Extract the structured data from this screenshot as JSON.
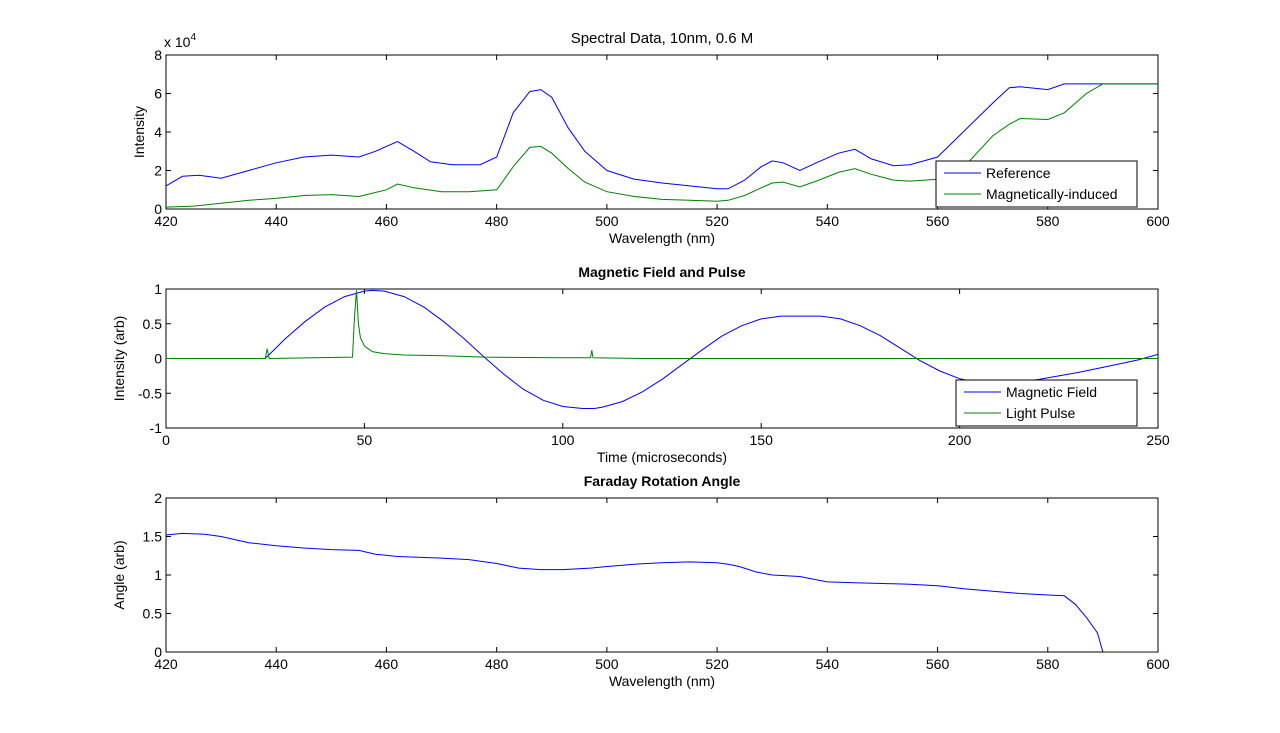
{
  "chart_data": [
    {
      "type": "line",
      "title": "Spectral Data, 10nm, 0.6 M",
      "xlabel": "Wavelength (nm)",
      "ylabel": "Intensity",
      "exponent_label": "x 10",
      "exponent_power": "4",
      "xlim": [
        420,
        600
      ],
      "ylim": [
        0,
        80000
      ],
      "xticks": [
        "420",
        "440",
        "460",
        "480",
        "500",
        "520",
        "540",
        "560",
        "580",
        "600"
      ],
      "yticks": [
        "0",
        "2",
        "4",
        "6",
        "8"
      ],
      "ytick_values": [
        0,
        20000,
        40000,
        60000,
        80000
      ],
      "legend_position": "bottom-right",
      "series": [
        {
          "name": "Reference",
          "color": "#0000ff",
          "x": [
            420,
            423,
            426,
            430,
            435,
            440,
            445,
            450,
            455,
            458,
            462,
            465,
            468,
            472,
            477,
            480,
            483,
            486,
            488,
            490,
            493,
            496,
            500,
            505,
            510,
            515,
            520,
            522,
            525,
            528,
            530,
            532,
            535,
            538,
            542,
            545,
            548,
            552,
            555,
            560,
            565,
            570,
            573,
            575,
            580,
            583,
            590,
            600
          ],
          "y": [
            12000,
            17000,
            17500,
            16000,
            20000,
            24000,
            27000,
            28000,
            27000,
            30000,
            35000,
            30000,
            24500,
            23000,
            23000,
            27000,
            50000,
            61000,
            62000,
            58000,
            42000,
            30000,
            20000,
            15500,
            13500,
            12000,
            10500,
            10500,
            15000,
            22000,
            25000,
            24000,
            20000,
            24000,
            29000,
            31000,
            26000,
            22500,
            23000,
            27000,
            41000,
            55000,
            63000,
            63500,
            62000,
            65000,
            65000,
            65000
          ]
        },
        {
          "name": "Magnetically-induced",
          "color": "#008000",
          "x": [
            420,
            425,
            430,
            435,
            440,
            445,
            450,
            455,
            460,
            462,
            465,
            470,
            475,
            480,
            483,
            486,
            488,
            490,
            493,
            496,
            500,
            505,
            510,
            515,
            520,
            522,
            525,
            528,
            530,
            532,
            535,
            538,
            542,
            545,
            548,
            552,
            555,
            560,
            565,
            570,
            573,
            575,
            580,
            583,
            587,
            590,
            600
          ],
          "y": [
            1000,
            1500,
            3000,
            4500,
            5500,
            7000,
            7500,
            6500,
            10000,
            13000,
            11000,
            9000,
            9000,
            10000,
            22000,
            32000,
            32500,
            29000,
            21000,
            14000,
            9000,
            6500,
            5000,
            4500,
            4000,
            4500,
            7000,
            11000,
            13500,
            14000,
            11500,
            14500,
            19000,
            21000,
            18000,
            15000,
            14500,
            15500,
            22500,
            38000,
            44000,
            47000,
            46500,
            50000,
            60000,
            65000,
            65000
          ]
        }
      ]
    },
    {
      "type": "line",
      "title": "Magnetic Field and Pulse",
      "xlabel": "Time (microseconds)",
      "ylabel": "Intensity (arb)",
      "xlim": [
        0,
        250
      ],
      "ylim": [
        -1,
        1
      ],
      "xticks": [
        "0",
        "50",
        "100",
        "150",
        "200",
        "250"
      ],
      "xtick_values": [
        0,
        50,
        100,
        150,
        200,
        250
      ],
      "yticks": [
        "-1",
        "-0.5",
        "0",
        "0.5",
        "1"
      ],
      "ytick_values": [
        -1,
        -0.5,
        0,
        0.5,
        1
      ],
      "legend_position": "bottom-right",
      "series": [
        {
          "name": "Magnetic Field",
          "color": "#0000ff",
          "x": [
            25,
            30,
            35,
            40,
            45,
            50,
            52,
            55,
            60,
            65,
            70,
            75,
            80,
            85,
            90,
            95,
            100,
            105,
            108,
            110,
            115,
            120,
            125,
            130,
            135,
            140,
            145,
            150,
            155,
            160,
            165,
            170,
            175,
            180,
            185,
            190,
            195,
            200,
            205,
            210,
            215,
            220,
            225,
            230,
            235,
            240,
            245,
            250
          ],
          "y": [
            0,
            0.28,
            0.53,
            0.74,
            0.89,
            0.97,
            0.98,
            0.97,
            0.89,
            0.74,
            0.53,
            0.29,
            0.03,
            -0.22,
            -0.44,
            -0.6,
            -0.69,
            -0.72,
            -0.72,
            -0.7,
            -0.62,
            -0.48,
            -0.3,
            -0.09,
            0.12,
            0.32,
            0.47,
            0.57,
            0.61,
            0.61,
            0.61,
            0.57,
            0.47,
            0.33,
            0.15,
            -0.03,
            -0.18,
            -0.29,
            -0.35,
            -0.36,
            -0.34,
            -0.3,
            -0.25,
            -0.2,
            -0.14,
            -0.08,
            -0.02,
            0.06
          ]
        },
        {
          "name": "Light Pulse",
          "color": "#008000",
          "x": [
            0,
            25,
            25.5,
            26,
            47,
            47.5,
            48,
            48.5,
            49,
            50,
            52,
            55,
            60,
            70,
            80,
            100,
            107,
            107.3,
            107.6,
            120,
            150,
            200,
            250
          ],
          "y": [
            0,
            0,
            0.14,
            0,
            0.02,
            0.6,
            0.98,
            0.5,
            0.3,
            0.18,
            0.1,
            0.07,
            0.05,
            0.04,
            0.02,
            0.01,
            0.01,
            0.12,
            0.01,
            0,
            0,
            0,
            0
          ]
        }
      ]
    },
    {
      "type": "line",
      "title": "Faraday Rotation Angle",
      "xlabel": "Wavelength (nm)",
      "ylabel": "Angle (arb)",
      "xlim": [
        420,
        600
      ],
      "ylim": [
        0,
        2
      ],
      "xticks": [
        "420",
        "440",
        "460",
        "480",
        "500",
        "520",
        "540",
        "560",
        "580",
        "600"
      ],
      "yticks": [
        "0",
        "0.5",
        "1",
        "1.5",
        "2"
      ],
      "ytick_values": [
        0,
        0.5,
        1,
        1.5,
        2
      ],
      "series": [
        {
          "name": "",
          "color": "#0000ff",
          "x": [
            420,
            423,
            427,
            430,
            435,
            440,
            445,
            450,
            455,
            458,
            462,
            470,
            475,
            480,
            484,
            488,
            492,
            497,
            500,
            505,
            510,
            515,
            520,
            522,
            524,
            527,
            530,
            535,
            540,
            545,
            550,
            555,
            560,
            565,
            570,
            575,
            580,
            583,
            585,
            587,
            589,
            590,
            600
          ],
          "y": [
            1.52,
            1.54,
            1.53,
            1.5,
            1.42,
            1.38,
            1.35,
            1.33,
            1.32,
            1.27,
            1.24,
            1.22,
            1.2,
            1.15,
            1.09,
            1.07,
            1.07,
            1.09,
            1.11,
            1.14,
            1.16,
            1.17,
            1.16,
            1.14,
            1.11,
            1.04,
            1.0,
            0.98,
            0.91,
            0.9,
            0.89,
            0.88,
            0.86,
            0.82,
            0.79,
            0.76,
            0.74,
            0.73,
            0.62,
            0.45,
            0.25,
            0.0,
            0.0
          ]
        }
      ]
    }
  ]
}
